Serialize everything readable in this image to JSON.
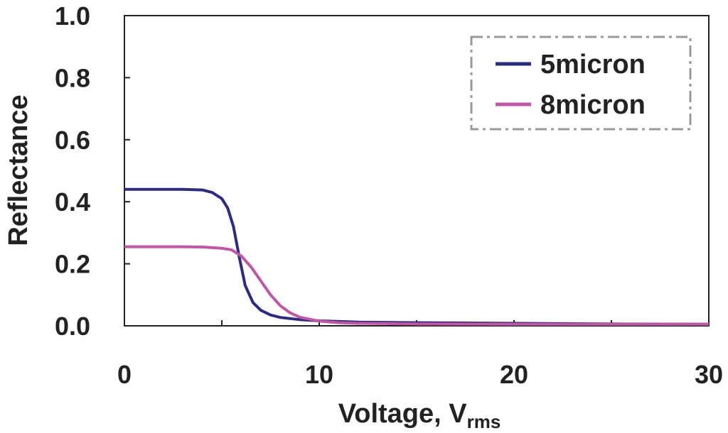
{
  "chart_data": {
    "type": "line",
    "title": "",
    "xlabel": "Voltage, V",
    "xlabel_subscript": "rms",
    "ylabel": "Reflectance",
    "xlim": [
      0,
      30
    ],
    "ylim": [
      0,
      1.0
    ],
    "xticks": [
      "0",
      "10",
      "20",
      "30"
    ],
    "yticks": [
      "0.0",
      "0.2",
      "0.4",
      "0.6",
      "0.8",
      "1.0"
    ],
    "legend_position": "top-right",
    "series": [
      {
        "name": "5micron",
        "color": "#2b2b86",
        "x": [
          0,
          1,
          2,
          3,
          4,
          4.5,
          5,
          5.3,
          5.6,
          5.9,
          6.2,
          6.6,
          7,
          7.5,
          8,
          9,
          10,
          12,
          15,
          20,
          25,
          30
        ],
        "y": [
          0.44,
          0.44,
          0.44,
          0.44,
          0.438,
          0.43,
          0.41,
          0.38,
          0.32,
          0.22,
          0.13,
          0.075,
          0.05,
          0.035,
          0.027,
          0.02,
          0.016,
          0.012,
          0.01,
          0.008,
          0.006,
          0.005
        ]
      },
      {
        "name": "8micron",
        "color": "#c455a6",
        "x": [
          0,
          1,
          2,
          3,
          4,
          5,
          5.5,
          6,
          6.5,
          7,
          7.5,
          8,
          8.5,
          9,
          10,
          11,
          12,
          15,
          20,
          25,
          30
        ],
        "y": [
          0.255,
          0.255,
          0.255,
          0.255,
          0.254,
          0.25,
          0.245,
          0.225,
          0.19,
          0.145,
          0.1,
          0.065,
          0.042,
          0.028,
          0.015,
          0.01,
          0.008,
          0.006,
          0.005,
          0.005,
          0.005
        ]
      }
    ]
  }
}
